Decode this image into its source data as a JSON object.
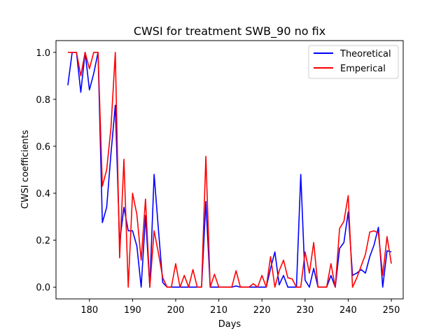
{
  "chart_data": {
    "type": "line",
    "title": "CWSI for treatment SWB_90 no fix",
    "xlabel": "Days",
    "ylabel": "CWSI coefficients",
    "xlim": [
      172.25,
      252.75
    ],
    "ylim": [
      -0.05,
      1.05
    ],
    "xticks": [
      180,
      190,
      200,
      210,
      220,
      230,
      240,
      250
    ],
    "yticks": [
      0.0,
      0.2,
      0.4,
      0.6,
      0.8,
      1.0
    ],
    "xtick_labels": [
      "180",
      "190",
      "200",
      "210",
      "220",
      "230",
      "240",
      "250"
    ],
    "ytick_labels": [
      "0.0",
      "0.2",
      "0.4",
      "0.6",
      "0.8",
      "1.0"
    ],
    "grid": false,
    "legend_position": "upper right",
    "series": [
      {
        "name": "Theoretical",
        "color": "#0000ff",
        "x": [
          175,
          176,
          177,
          178,
          179,
          180,
          181,
          182,
          183,
          184,
          185,
          186,
          187,
          188,
          189,
          190,
          191,
          192,
          193,
          194,
          195,
          196,
          197,
          198,
          199,
          200,
          201,
          202,
          203,
          204,
          205,
          206,
          207,
          208,
          209,
          210,
          211,
          212,
          213,
          214,
          215,
          216,
          217,
          218,
          219,
          220,
          221,
          222,
          223,
          224,
          225,
          226,
          227,
          228,
          229,
          230,
          231,
          232,
          233,
          234,
          235,
          236,
          237,
          238,
          239,
          240,
          241,
          242,
          243,
          244,
          245,
          246,
          247,
          248,
          249,
          250
        ],
        "values": [
          0.86,
          1.0,
          1.0,
          0.83,
          1.0,
          0.84,
          0.91,
          1.0,
          0.275,
          0.34,
          0.57,
          0.775,
          0.19,
          0.34,
          0.24,
          0.24,
          0.175,
          0.0,
          0.305,
          0.0,
          0.48,
          0.245,
          0.02,
          0.0,
          0.0,
          0.0,
          0.0,
          0.0,
          0.0,
          0.0,
          0.0,
          0.0,
          0.365,
          0.0,
          0.0,
          0.0,
          0.0,
          0.0,
          0.0,
          0.005,
          0.0,
          0.0,
          0.0,
          0.0,
          0.0,
          0.0,
          0.0,
          0.08,
          0.15,
          0.01,
          0.05,
          0.0,
          0.0,
          0.0,
          0.48,
          0.03,
          0.0,
          0.08,
          0.0,
          0.0,
          0.0,
          0.05,
          0.0,
          0.165,
          0.19,
          0.32,
          0.05,
          0.06,
          0.075,
          0.06,
          0.13,
          0.18,
          0.255,
          0.0,
          0.155,
          0.15
        ]
      },
      {
        "name": "Emperical",
        "color": "#ff0000",
        "x": [
          175,
          176,
          177,
          178,
          179,
          180,
          181,
          182,
          183,
          184,
          185,
          186,
          187,
          188,
          189,
          190,
          191,
          192,
          193,
          194,
          195,
          196,
          197,
          198,
          199,
          200,
          201,
          202,
          203,
          204,
          205,
          206,
          207,
          208,
          209,
          210,
          211,
          212,
          213,
          214,
          215,
          216,
          217,
          218,
          219,
          220,
          221,
          222,
          223,
          224,
          225,
          226,
          227,
          228,
          229,
          230,
          231,
          232,
          233,
          234,
          235,
          236,
          237,
          238,
          239,
          240,
          241,
          242,
          243,
          244,
          245,
          246,
          247,
          248,
          249,
          250
        ],
        "values": [
          1.0,
          1.0,
          1.0,
          0.9,
          1.0,
          0.93,
          1.0,
          1.0,
          0.43,
          0.5,
          0.68,
          1.0,
          0.125,
          0.545,
          0.0,
          0.4,
          0.31,
          0.115,
          0.375,
          0.0,
          0.24,
          0.145,
          0.04,
          0.0,
          0.0,
          0.1,
          0.0,
          0.05,
          0.0,
          0.075,
          0.0,
          0.0,
          0.557,
          0.0,
          0.055,
          0.0,
          0.0,
          0.0,
          0.0,
          0.07,
          0.0,
          0.0,
          0.0,
          0.015,
          0.0,
          0.05,
          0.0,
          0.13,
          0.0,
          0.07,
          0.115,
          0.04,
          0.035,
          0.0,
          0.0,
          0.15,
          0.06,
          0.19,
          0.0,
          0.0,
          0.0,
          0.1,
          0.0,
          0.25,
          0.28,
          0.39,
          0.0,
          0.04,
          0.09,
          0.14,
          0.235,
          0.24,
          0.23,
          0.05,
          0.215,
          0.1
        ]
      }
    ]
  }
}
